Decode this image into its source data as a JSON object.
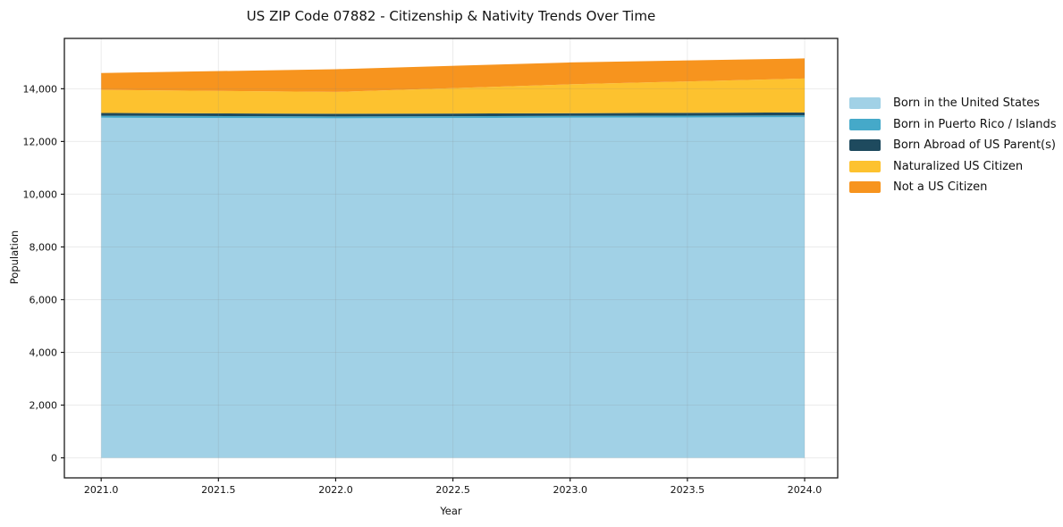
{
  "page": {
    "title": "US ZIP Code 07882 - Citizenship & Nativity Trends Over Time"
  },
  "chart_data": {
    "type": "area",
    "stacked": true,
    "title": "US ZIP Code 07882 - Citizenship & Nativity Trends Over Time",
    "xlabel": "Year",
    "ylabel": "Population",
    "x": [
      2021,
      2022,
      2023,
      2024
    ],
    "series": [
      {
        "name": "Born in the United States",
        "color": "#a1d1e6",
        "values": [
          12900,
          12880,
          12900,
          12920
        ]
      },
      {
        "name": "Born in Puerto Rico / Islands",
        "color": "#45a9c9",
        "values": [
          75,
          70,
          70,
          70
        ]
      },
      {
        "name": "Born Abroad of US Parent(s)",
        "color": "#1e4a5e",
        "values": [
          105,
          100,
          100,
          110
        ]
      },
      {
        "name": "Naturalized US Citizen",
        "color": "#fdc22f",
        "values": [
          880,
          830,
          1100,
          1290
        ]
      },
      {
        "name": "Not a US Citizen",
        "color": "#f7941e",
        "values": [
          640,
          860,
          830,
          760
        ]
      }
    ],
    "totals": [
      14600,
      14740,
      15000,
      15150
    ],
    "x_tick_labels": [
      "2021.0",
      "2021.5",
      "2022.0",
      "2022.5",
      "2023.0",
      "2023.5",
      "2024.0"
    ],
    "x_tick_values": [
      2021,
      2021.5,
      2022,
      2022.5,
      2023,
      2023.5,
      2024
    ],
    "y_tick_labels": [
      "0",
      "2,000",
      "4,000",
      "6,000",
      "8,000",
      "10,000",
      "12,000",
      "14,000"
    ],
    "y_tick_values": [
      0,
      2000,
      4000,
      6000,
      8000,
      10000,
      12000,
      14000
    ],
    "xlim": [
      2020.843,
      2024.141
    ],
    "ylim": [
      -760,
      15910
    ],
    "grid": true,
    "grid_color": "rgba(130,130,130,0.16)",
    "spine_color": "#1a1a1a",
    "legend_position": "right-outside"
  }
}
